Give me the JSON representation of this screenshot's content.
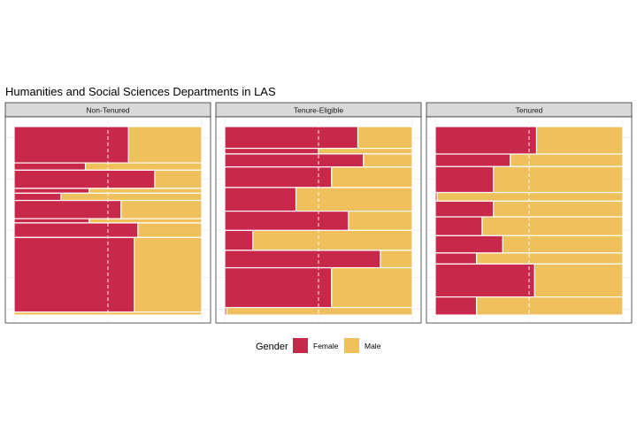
{
  "chart_data": {
    "type": "bar",
    "subtype": "stacked-proportion-mosaic",
    "title": "Humanities and Social Sciences Departments in LAS",
    "xlabel": "",
    "ylabel": "",
    "xlim": [
      0,
      1
    ],
    "grid": true,
    "legend": {
      "title": "Gender",
      "position": "bottom",
      "entries": [
        {
          "label": "Female",
          "color": "#c8294b"
        },
        {
          "label": "Male",
          "color": "#f0c05c"
        }
      ]
    },
    "panels": [
      {
        "label": "Non-Tenured",
        "rows": [
          {
            "weight": 6,
            "female": 0.61
          },
          {
            "weight": 1.2,
            "female": 0.38
          },
          {
            "weight": 3,
            "female": 0.75
          },
          {
            "weight": 0.8,
            "female": 0.4
          },
          {
            "weight": 1.2,
            "female": 0.25
          },
          {
            "weight": 3,
            "female": 0.57
          },
          {
            "weight": 0.7,
            "female": 0.4
          },
          {
            "weight": 2.4,
            "female": 0.66
          },
          {
            "weight": 12.3,
            "female": 0.64
          },
          {
            "weight": 0.5,
            "female": 0.0
          }
        ]
      },
      {
        "label": "Tenure-Eligible",
        "rows": [
          {
            "weight": 3.5,
            "female": 0.71
          },
          {
            "weight": 0.9,
            "female": 0.5
          },
          {
            "weight": 2.1,
            "female": 0.74
          },
          {
            "weight": 3.3,
            "female": 0.57
          },
          {
            "weight": 3.8,
            "female": 0.38
          },
          {
            "weight": 3.1,
            "female": 0.66
          },
          {
            "weight": 3.2,
            "female": 0.15
          },
          {
            "weight": 2.8,
            "female": 0.83
          },
          {
            "weight": 6.4,
            "female": 0.57
          },
          {
            "weight": 1.2,
            "female": 0.01
          }
        ]
      },
      {
        "label": "Tenured",
        "rows": [
          {
            "weight": 3.5,
            "female": 0.54
          },
          {
            "weight": 1.6,
            "female": 0.4
          },
          {
            "weight": 3.3,
            "female": 0.31
          },
          {
            "weight": 1.1,
            "female": 0.01
          },
          {
            "weight": 2.0,
            "female": 0.31
          },
          {
            "weight": 2.4,
            "female": 0.25
          },
          {
            "weight": 2.2,
            "female": 0.36
          },
          {
            "weight": 1.4,
            "female": 0.22
          },
          {
            "weight": 4.2,
            "female": 0.53
          },
          {
            "weight": 2.3,
            "female": 0.22
          }
        ]
      }
    ]
  }
}
